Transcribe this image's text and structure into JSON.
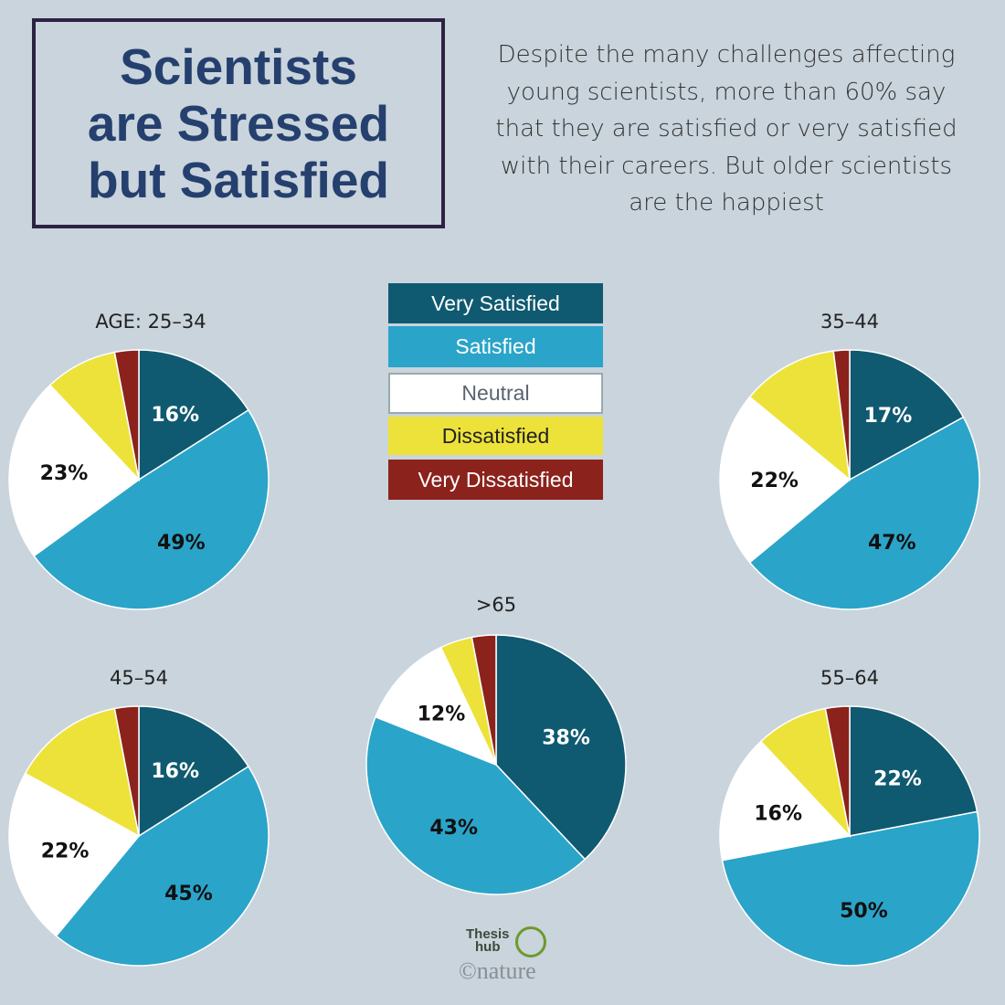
{
  "title": "Scientists\nare Stressed\nbut Satisfied",
  "subtitle": "Despite the many challenges affecting\nyoung scientists, more than 60% say\nthat they are satisfied or very satisfied\nwith their careers. But older scientists\nare the happiest",
  "logo": {
    "thesis_hub": "Thesis\nhub",
    "nature": "©nature"
  },
  "chart_data": {
    "type": "pie",
    "legend": {
      "placement": "center",
      "entries": [
        {
          "name": "Very Satisfied",
          "color": "#0f5a70",
          "text_color": "#ffffff"
        },
        {
          "name": "Satisfied",
          "color": "#2ba4c9",
          "text_color": "#ffffff"
        },
        {
          "name": "Neutral",
          "color": "#ffffff",
          "text_color": "#5a6470"
        },
        {
          "name": "Dissatisfied",
          "color": "#ede23a",
          "text_color": "#222222"
        },
        {
          "name": "Very Dissatisfied",
          "color": "#8b221c",
          "text_color": "#ffffff"
        }
      ]
    },
    "pies": [
      {
        "label": "AGE: 25–34",
        "values": [
          16,
          49,
          23,
          9,
          3
        ],
        "data_labels": [
          "16%",
          "49%",
          "23%",
          "",
          ""
        ]
      },
      {
        "label": "35–44",
        "values": [
          17,
          47,
          22,
          12,
          2
        ],
        "data_labels": [
          "17%",
          "47%",
          "22%",
          "",
          ""
        ]
      },
      {
        "label": "45–54",
        "values": [
          16,
          45,
          22,
          14,
          3
        ],
        "data_labels": [
          "16%",
          "45%",
          "22%",
          "",
          ""
        ]
      },
      {
        "label": ">65",
        "values": [
          38,
          43,
          12,
          4,
          3
        ],
        "data_labels": [
          "38%",
          "43%",
          "12%",
          "",
          ""
        ]
      },
      {
        "label": "55–64",
        "values": [
          22,
          50,
          16,
          9,
          3
        ],
        "data_labels": [
          "22%",
          "50%",
          "16%",
          "",
          ""
        ]
      }
    ]
  }
}
